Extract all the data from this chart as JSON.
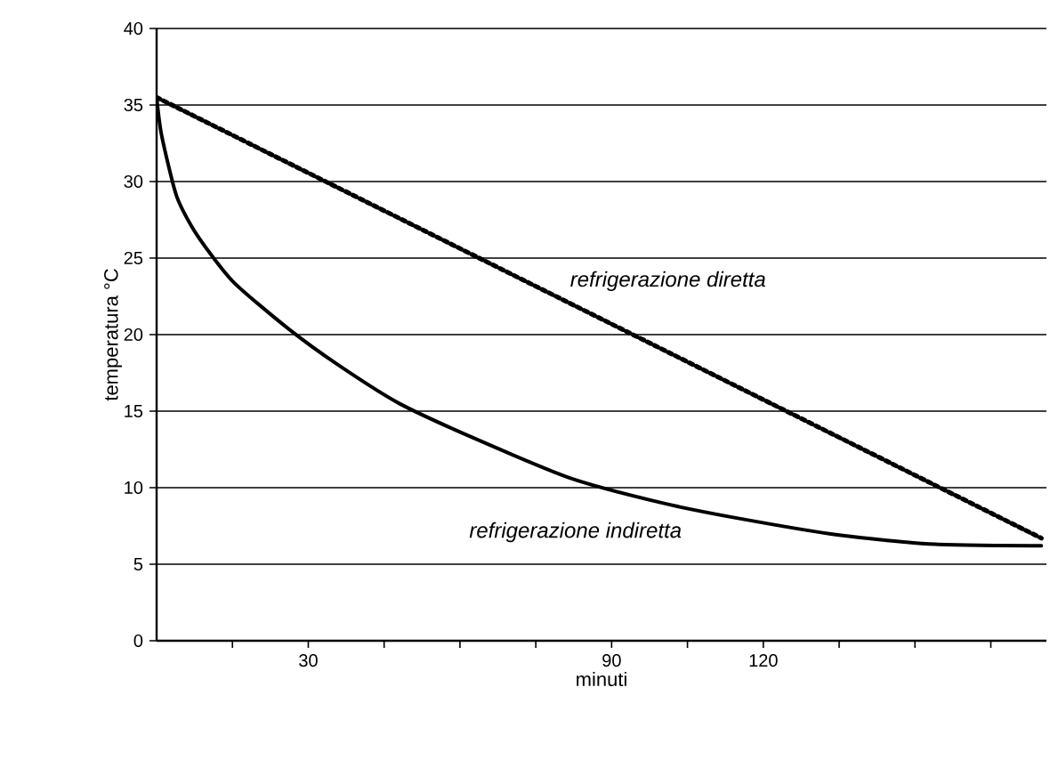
{
  "chart_data": {
    "type": "line",
    "xlabel": "minuti",
    "ylabel": "temperatura °C",
    "xlim": [
      0,
      176
    ],
    "ylim": [
      0,
      40
    ],
    "xticks": [
      {
        "value": 15,
        "label": null
      },
      30,
      {
        "value": 45,
        "label": null
      },
      {
        "value": 60,
        "label": null
      },
      {
        "value": 75,
        "label": null
      },
      90,
      {
        "value": 105,
        "label": null
      },
      120,
      {
        "value": 135,
        "label": null
      },
      {
        "value": 150,
        "label": null
      },
      {
        "value": 165,
        "label": null
      }
    ],
    "yticks": [
      0,
      5,
      10,
      15,
      20,
      25,
      30,
      35,
      40
    ],
    "grid": "y",
    "series": [
      {
        "name": "refrigerazione indiretta",
        "color": "#000000",
        "line_style": "solid",
        "x": [
          0,
          1,
          4,
          8,
          15,
          26,
          36,
          48,
          63,
          82,
          100,
          115,
          135,
          154,
          175
        ],
        "values": [
          35.5,
          33,
          29,
          26.5,
          23.5,
          20.4,
          18,
          15.5,
          13.2,
          10.6,
          9,
          8,
          6.9,
          6.3,
          6.2
        ]
      },
      {
        "name": "refrigerazione diretta",
        "color": "#000000",
        "line_style": "dotted",
        "x": [
          0,
          175
        ],
        "values": [
          35.5,
          6.7
        ]
      }
    ]
  }
}
